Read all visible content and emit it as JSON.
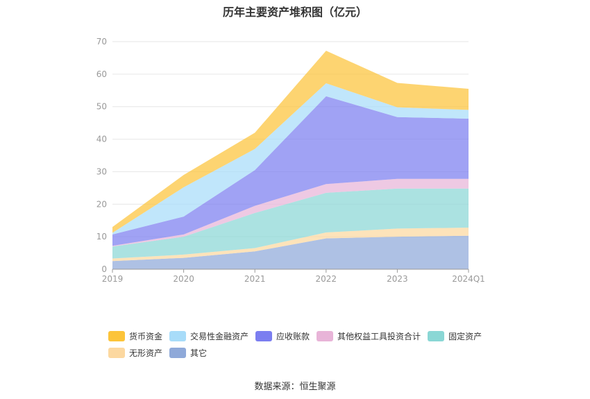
{
  "chart_data": {
    "type": "area",
    "stacked": true,
    "title": "历年主要资产堆积图（亿元）",
    "categories": [
      "2019",
      "2020",
      "2021",
      "2022",
      "2023",
      "2024Q1"
    ],
    "ylim": [
      0,
      70
    ],
    "yticks": [
      0,
      10,
      20,
      30,
      40,
      50,
      60,
      70
    ],
    "grid": true,
    "legend_position": "bottom",
    "series": [
      {
        "name": "其它",
        "color": "#8fa9d9",
        "values": [
          2.5,
          3.5,
          5.5,
          9.5,
          10.0,
          10.3
        ]
      },
      {
        "name": "无形资产",
        "color": "#fcd8a0",
        "values": [
          0.8,
          1.0,
          1.0,
          1.8,
          2.5,
          2.5
        ]
      },
      {
        "name": "固定资产",
        "color": "#8ad7d5",
        "values": [
          3.7,
          5.5,
          10.8,
          12.2,
          12.3,
          12.0
        ]
      },
      {
        "name": "其他权益工具投资合计",
        "color": "#e8b4d8",
        "values": [
          0.2,
          0.7,
          2.2,
          2.7,
          3.0,
          3.0
        ]
      },
      {
        "name": "应收账款",
        "color": "#7b7ef0",
        "values": [
          3.5,
          5.5,
          11.0,
          27.0,
          19.0,
          18.5
        ]
      },
      {
        "name": "交易性金融资产",
        "color": "#a8dcf9",
        "values": [
          0.5,
          9.0,
          6.5,
          4.0,
          3.0,
          2.7
        ]
      },
      {
        "name": "货币资金",
        "color": "#fcc43a",
        "values": [
          1.8,
          3.8,
          5.0,
          10.0,
          7.5,
          6.5
        ]
      }
    ],
    "legend_order": [
      "货币资金",
      "交易性金融资产",
      "应收账款",
      "其他权益工具投资合计",
      "固定资产",
      "无形资产",
      "其它"
    ]
  },
  "source_text": "数据来源：恒生聚源"
}
